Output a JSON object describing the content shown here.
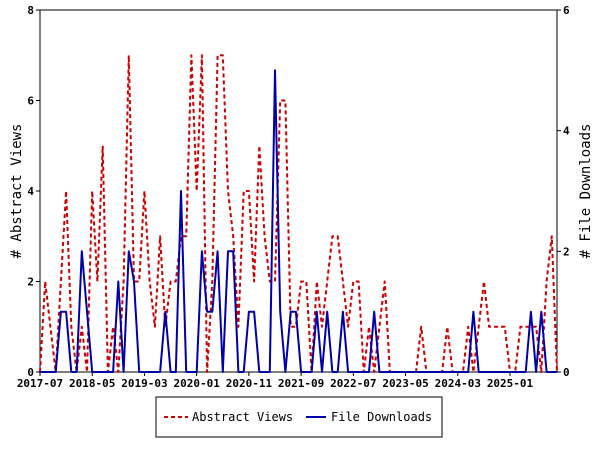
{
  "chart_data": {
    "type": "line",
    "title": "",
    "x_tick_labels": [
      "2017-07",
      "2018-05",
      "2019-03",
      "2020-01",
      "2020-11",
      "2021-09",
      "2022-07",
      "2023-05",
      "2024-03",
      "2025-01"
    ],
    "y_left": {
      "label": "# Abstract Views",
      "ylim": [
        0,
        8
      ],
      "ticks": [
        "0",
        "2",
        "4",
        "6",
        "8"
      ]
    },
    "y_right": {
      "label": "# File Downloads",
      "ylim": [
        0,
        6
      ],
      "ticks": [
        "0",
        "2",
        "4",
        "6"
      ]
    },
    "grid": false,
    "legend": {
      "placement": "bottom-center",
      "entries": [
        "Abstract Views",
        "File Downloads"
      ]
    },
    "series": [
      {
        "name": "Abstract Views",
        "axis": "left",
        "color": "#cc0000",
        "style": "dashed",
        "values": [
          0,
          2,
          1,
          0,
          2,
          4,
          1,
          0,
          1,
          0,
          4,
          2,
          5,
          0,
          1,
          0,
          2,
          7,
          2,
          2,
          4,
          2,
          1,
          3,
          1,
          2,
          2,
          3,
          3,
          7,
          4,
          7,
          0,
          2,
          7,
          7,
          4,
          3,
          1,
          4,
          4,
          2,
          5,
          3,
          2,
          2,
          6,
          6,
          1,
          1,
          2,
          2,
          0,
          2,
          1,
          2,
          3,
          3,
          2,
          1,
          2,
          2,
          0,
          1,
          0,
          1,
          2,
          0,
          0,
          0,
          0,
          0,
          0,
          1,
          0,
          0,
          0,
          0,
          1,
          0,
          0,
          0,
          1,
          0,
          1,
          2,
          1,
          1,
          1,
          1,
          0,
          0,
          1,
          1,
          1,
          1,
          0,
          2,
          3,
          0
        ]
      },
      {
        "name": "File Downloads",
        "axis": "right",
        "color": "#0000aa",
        "style": "solid",
        "values": [
          0,
          0,
          0,
          0,
          1,
          1,
          0,
          0,
          2,
          1,
          0,
          0,
          0,
          0,
          0,
          1.5,
          0,
          2,
          1.5,
          0,
          0,
          0,
          0,
          0,
          1,
          0,
          0,
          3,
          0,
          0,
          0,
          2,
          1,
          1,
          2,
          0,
          2,
          2,
          0,
          0,
          1,
          1,
          0,
          0,
          0,
          5,
          1,
          0,
          1,
          1,
          0,
          0,
          0,
          1,
          0,
          1,
          0,
          0,
          1,
          0,
          0,
          0,
          0,
          0,
          1,
          0,
          0,
          0,
          0,
          0,
          0,
          0,
          0,
          0,
          0,
          0,
          0,
          0,
          0,
          0,
          0,
          0,
          0,
          1,
          0,
          0,
          0,
          0,
          0,
          0,
          0,
          0,
          0,
          0,
          1,
          0,
          1,
          0,
          0,
          0
        ]
      }
    ]
  }
}
